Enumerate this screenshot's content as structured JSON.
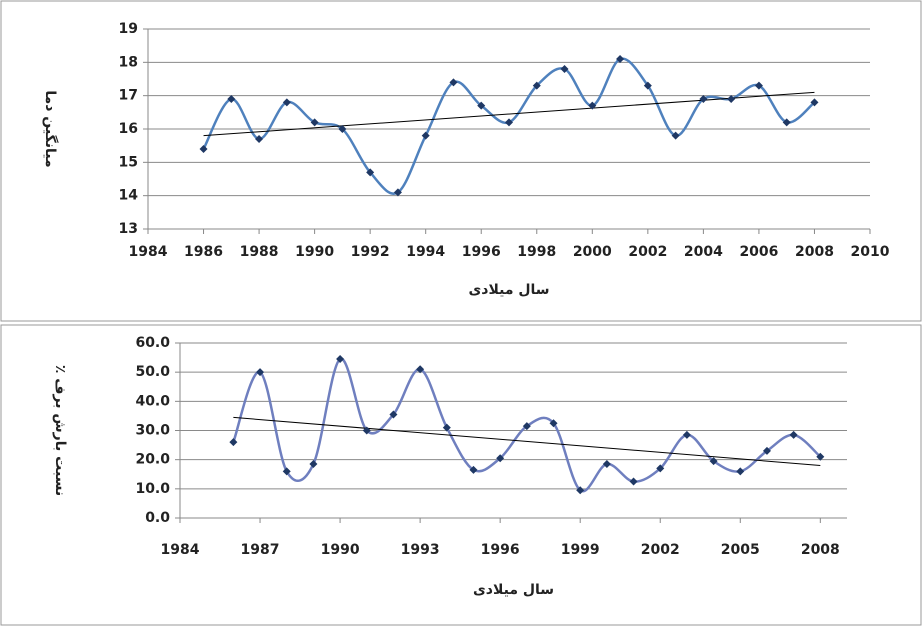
{
  "chart_data": [
    {
      "type": "line",
      "y_label": "میانگین دما",
      "x_label": "سال میلادی",
      "x": [
        1986,
        1987,
        1988,
        1989,
        1990,
        1991,
        1992,
        1993,
        1994,
        1995,
        1996,
        1997,
        1998,
        1999,
        2000,
        2001,
        2002,
        2003,
        2004,
        2005,
        2006,
        2007,
        2008
      ],
      "values": [
        15.4,
        16.9,
        15.7,
        16.8,
        16.2,
        16.0,
        14.7,
        14.1,
        15.8,
        17.4,
        16.7,
        16.2,
        17.3,
        17.8,
        16.7,
        18.1,
        17.3,
        15.8,
        16.9,
        16.9,
        17.3,
        16.2,
        16.8
      ],
      "color": "#4f81bd",
      "marker_color": "#1f3864",
      "trendline": {
        "x": [
          1986,
          2008
        ],
        "values": [
          15.8,
          17.1
        ],
        "color": "#000000"
      },
      "xlim": [
        1984,
        2010
      ],
      "xticks": [
        1984,
        1986,
        1988,
        1990,
        1992,
        1994,
        1996,
        1998,
        2000,
        2002,
        2004,
        2006,
        2008,
        2010
      ],
      "ylim": [
        13,
        19
      ],
      "yticks": [
        13,
        14,
        15,
        16,
        17,
        18,
        19
      ],
      "grid": true
    },
    {
      "type": "line",
      "y_label": "٪ نسبت بارش برف",
      "x_label": "سال میلادی",
      "x": [
        1986,
        1987,
        1988,
        1989,
        1990,
        1991,
        1992,
        1993,
        1994,
        1995,
        1996,
        1997,
        1998,
        1999,
        2000,
        2001,
        2002,
        2003,
        2004,
        2005,
        2006,
        2007,
        2008
      ],
      "values": [
        26,
        50,
        16,
        18.5,
        54.5,
        30,
        35.5,
        51,
        31,
        16.5,
        20.5,
        31.5,
        32.5,
        9.5,
        18.5,
        12.5,
        17,
        28.5,
        19.5,
        16,
        23,
        28.5,
        21
      ],
      "color": "#6f7fbf",
      "marker_color": "#1f3864",
      "trendline": {
        "x": [
          1986,
          2008
        ],
        "values": [
          34.5,
          18
        ],
        "color": "#000000"
      },
      "xlim": [
        1984,
        2009
      ],
      "xticks": [
        1984,
        1987,
        1990,
        1993,
        1996,
        1999,
        2002,
        2005,
        2008
      ],
      "ylim": [
        0,
        60
      ],
      "yticks": [
        {
          "value": 0,
          "label": "0.0"
        },
        {
          "value": 10,
          "label": "10.0"
        },
        {
          "value": 20,
          "label": "20.0"
        },
        {
          "value": 30,
          "label": "30.0"
        },
        {
          "value": 40,
          "label": "40.0"
        },
        {
          "value": 50,
          "label": "50.0"
        },
        {
          "value": 60,
          "label": "60.0"
        }
      ],
      "grid": true
    }
  ]
}
